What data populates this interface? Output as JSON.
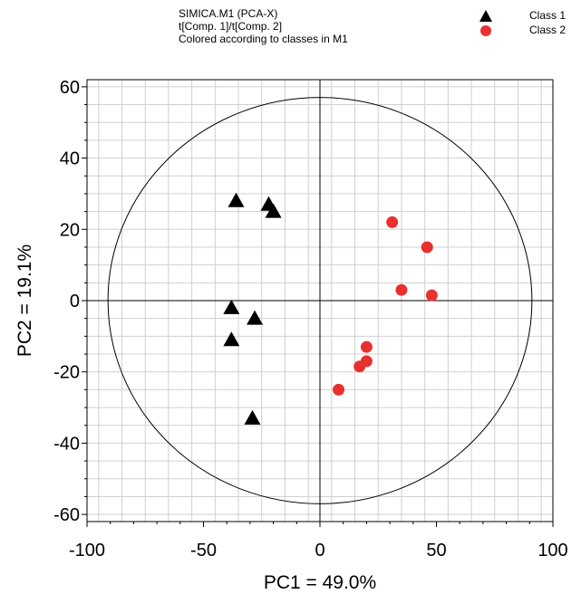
{
  "header": {
    "line1": "SIMICA.M1 (PCA-X)",
    "line2": "t[Comp. 1]/t[Comp. 2]",
    "line3": "Colored according to classes in M1"
  },
  "colors": {
    "class1": "#000000",
    "class2": "#e8312f",
    "grid": "#d0d0d0",
    "ellipse": "#000000"
  },
  "chart_data": {
    "type": "scatter",
    "title": "",
    "xlabel": "PC1 = 49.0%",
    "ylabel": "PC2 = 19.1%",
    "xlim": [
      -100,
      100
    ],
    "ylim": [
      -62,
      62
    ],
    "xticks": [
      -100,
      -50,
      0,
      50,
      100
    ],
    "yticks": [
      -60,
      -40,
      -20,
      0,
      20,
      40,
      60
    ],
    "grid": true,
    "legend_position": "top-right",
    "ellipse": {
      "rx": 91,
      "ry": 57
    },
    "series": [
      {
        "name": "Class 1",
        "marker": "triangle",
        "color": "#000000",
        "points": [
          {
            "x": -36,
            "y": 28
          },
          {
            "x": -22,
            "y": 27
          },
          {
            "x": -20,
            "y": 25
          },
          {
            "x": -38,
            "y": -2
          },
          {
            "x": -28,
            "y": -5
          },
          {
            "x": -38,
            "y": -11
          },
          {
            "x": -29,
            "y": -33
          }
        ]
      },
      {
        "name": "Class 2",
        "marker": "circle",
        "color": "#e8312f",
        "points": [
          {
            "x": 31,
            "y": 22
          },
          {
            "x": 46,
            "y": 15
          },
          {
            "x": 35,
            "y": 3
          },
          {
            "x": 48,
            "y": 1.5
          },
          {
            "x": 20,
            "y": -13
          },
          {
            "x": 20,
            "y": -17
          },
          {
            "x": 17,
            "y": -18.5
          },
          {
            "x": 8,
            "y": -25
          }
        ]
      }
    ]
  }
}
